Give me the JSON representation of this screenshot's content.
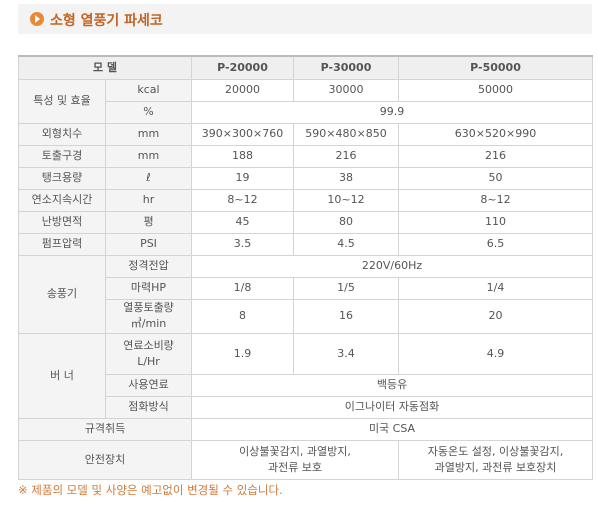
{
  "header": {
    "title": "소형 열풍기 파세코"
  },
  "table": {
    "header": [
      "모 델",
      "P-20000",
      "P-30000",
      "P-50000"
    ],
    "rows": [
      [
        "특성 및 효율",
        "kcal",
        "20000",
        "30000",
        "50000"
      ],
      [
        "%",
        "99.9"
      ],
      [
        "외형치수",
        "mm",
        "390×300×760",
        "590×480×850",
        "630×520×990"
      ],
      [
        "토출구경",
        "mm",
        "188",
        "216",
        "216"
      ],
      [
        "탱크용량",
        "ℓ",
        "19",
        "38",
        "50"
      ],
      [
        "연소지속시간",
        "hr",
        "8~12",
        "10~12",
        "8~12"
      ],
      [
        "난방면적",
        "평",
        "45",
        "80",
        "110"
      ],
      [
        "펌프압력",
        "PSI",
        "3.5",
        "4.5",
        "6.5"
      ],
      [
        "송풍기",
        "정격전압",
        "220V/60Hz"
      ],
      [
        "마력HP",
        "1/8",
        "1/5",
        "1/4"
      ],
      [
        [
          "열풍토출량",
          "㎥/min"
        ],
        "8",
        "16",
        "20"
      ],
      [
        "버 너",
        [
          "연료소비량",
          "L/Hr"
        ],
        "1.9",
        "3.4",
        "4.9"
      ],
      [
        "사용연료",
        "백등유"
      ],
      [
        "점화방식",
        "이그나이터 자동점화"
      ],
      [
        "규격취득",
        "미국 CSA"
      ],
      [
        "안전장치",
        [
          "이상불꽃감지, 과열방지,",
          "과전류 보호"
        ],
        [
          "자동온도 설정, 이상불꽃감지,",
          "과열방지, 과전류 보호장치"
        ]
      ]
    ]
  },
  "footnote": "※ 제품의 모델 및 사양은 예고없이 변경될 수 있습니다."
}
